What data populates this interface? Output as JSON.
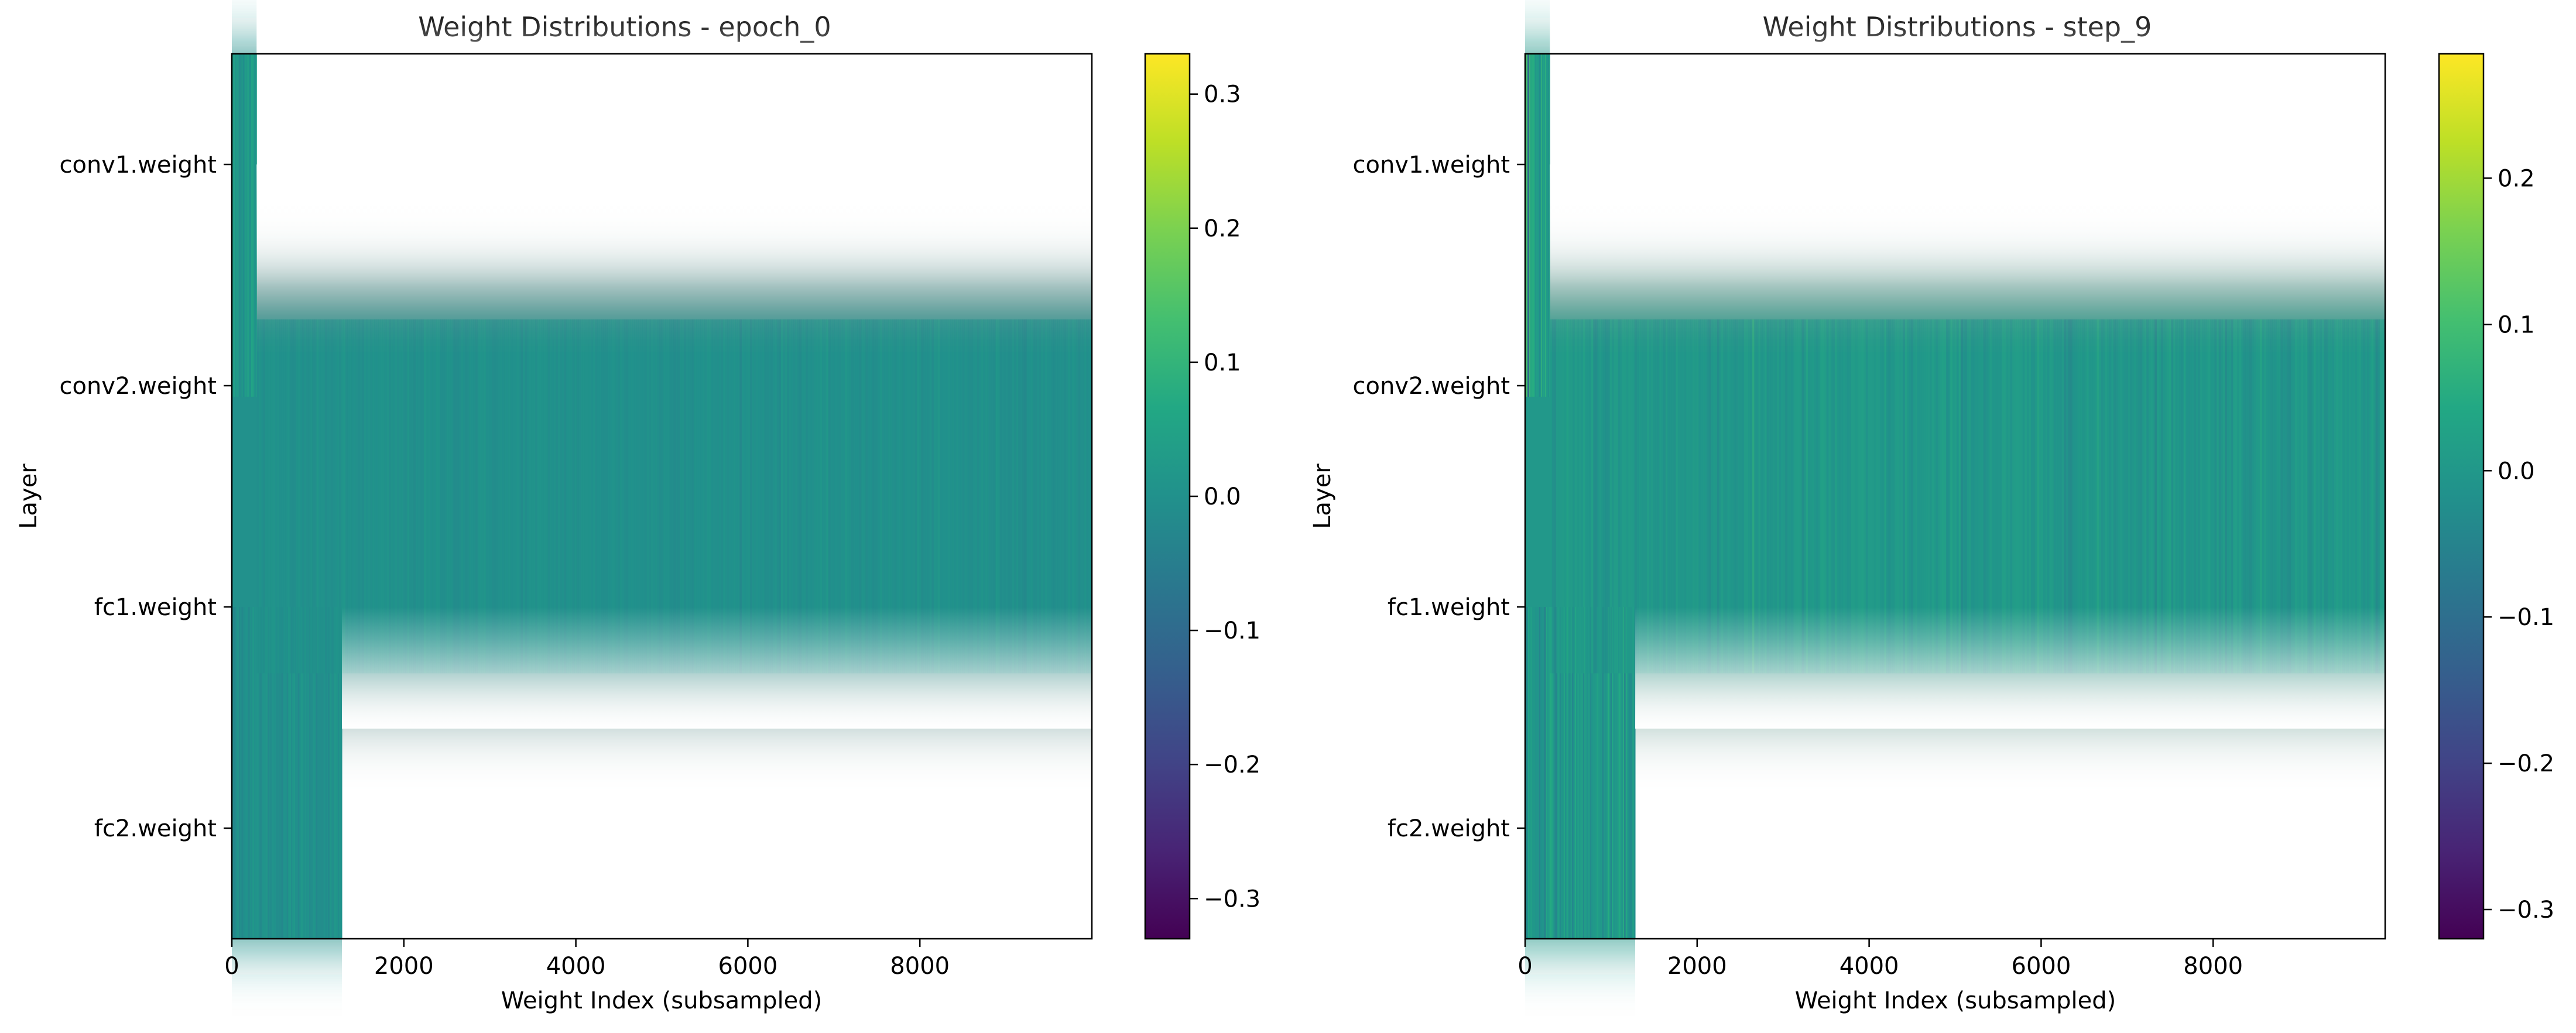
{
  "chart_data": [
    {
      "type": "heatmap",
      "title": "Weight Distributions - epoch_0",
      "xlabel": "Weight Index (subsampled)",
      "ylabel": "Layer",
      "xlim": [
        0,
        10000
      ],
      "xticks": [
        0,
        2000,
        4000,
        6000,
        8000
      ],
      "xtick_labels": [
        "0",
        "2000",
        "4000",
        "6000",
        "8000"
      ],
      "rows": [
        {
          "label": "conv1.weight",
          "length": 288
        },
        {
          "label": "conv2.weight",
          "length": 10000
        },
        {
          "label": "fc1.weight",
          "length": 10000
        },
        {
          "label": "fc2.weight",
          "length": 1280
        }
      ],
      "value_spread": 0.012,
      "colorbar": {
        "cmap": "viridis",
        "vmin": -0.33,
        "vmax": 0.33,
        "ticks": [
          0.3,
          0.2,
          0.1,
          0.0,
          -0.1,
          -0.2,
          -0.3
        ],
        "tick_labels": [
          "0.3",
          "0.2",
          "0.1",
          "0.0",
          "−0.1",
          "−0.2",
          "−0.3"
        ]
      }
    },
    {
      "type": "heatmap",
      "title": "Weight Distributions - step_9",
      "xlabel": "Weight Index (subsampled)",
      "ylabel": "Layer",
      "xlim": [
        0,
        10000
      ],
      "xticks": [
        0,
        2000,
        4000,
        6000,
        8000
      ],
      "xtick_labels": [
        "0",
        "2000",
        "4000",
        "6000",
        "8000"
      ],
      "rows": [
        {
          "label": "conv1.weight",
          "length": 288
        },
        {
          "label": "conv2.weight",
          "length": 10000
        },
        {
          "label": "fc1.weight",
          "length": 10000
        },
        {
          "label": "fc2.weight",
          "length": 1280
        }
      ],
      "value_spread": 0.022,
      "colorbar": {
        "cmap": "viridis",
        "vmin": -0.32,
        "vmax": 0.285,
        "ticks": [
          0.2,
          0.1,
          0.0,
          -0.1,
          -0.2,
          -0.3
        ],
        "tick_labels": [
          "0.2",
          "0.1",
          "0.0",
          "−0.1",
          "−0.2",
          "−0.3"
        ]
      }
    }
  ]
}
